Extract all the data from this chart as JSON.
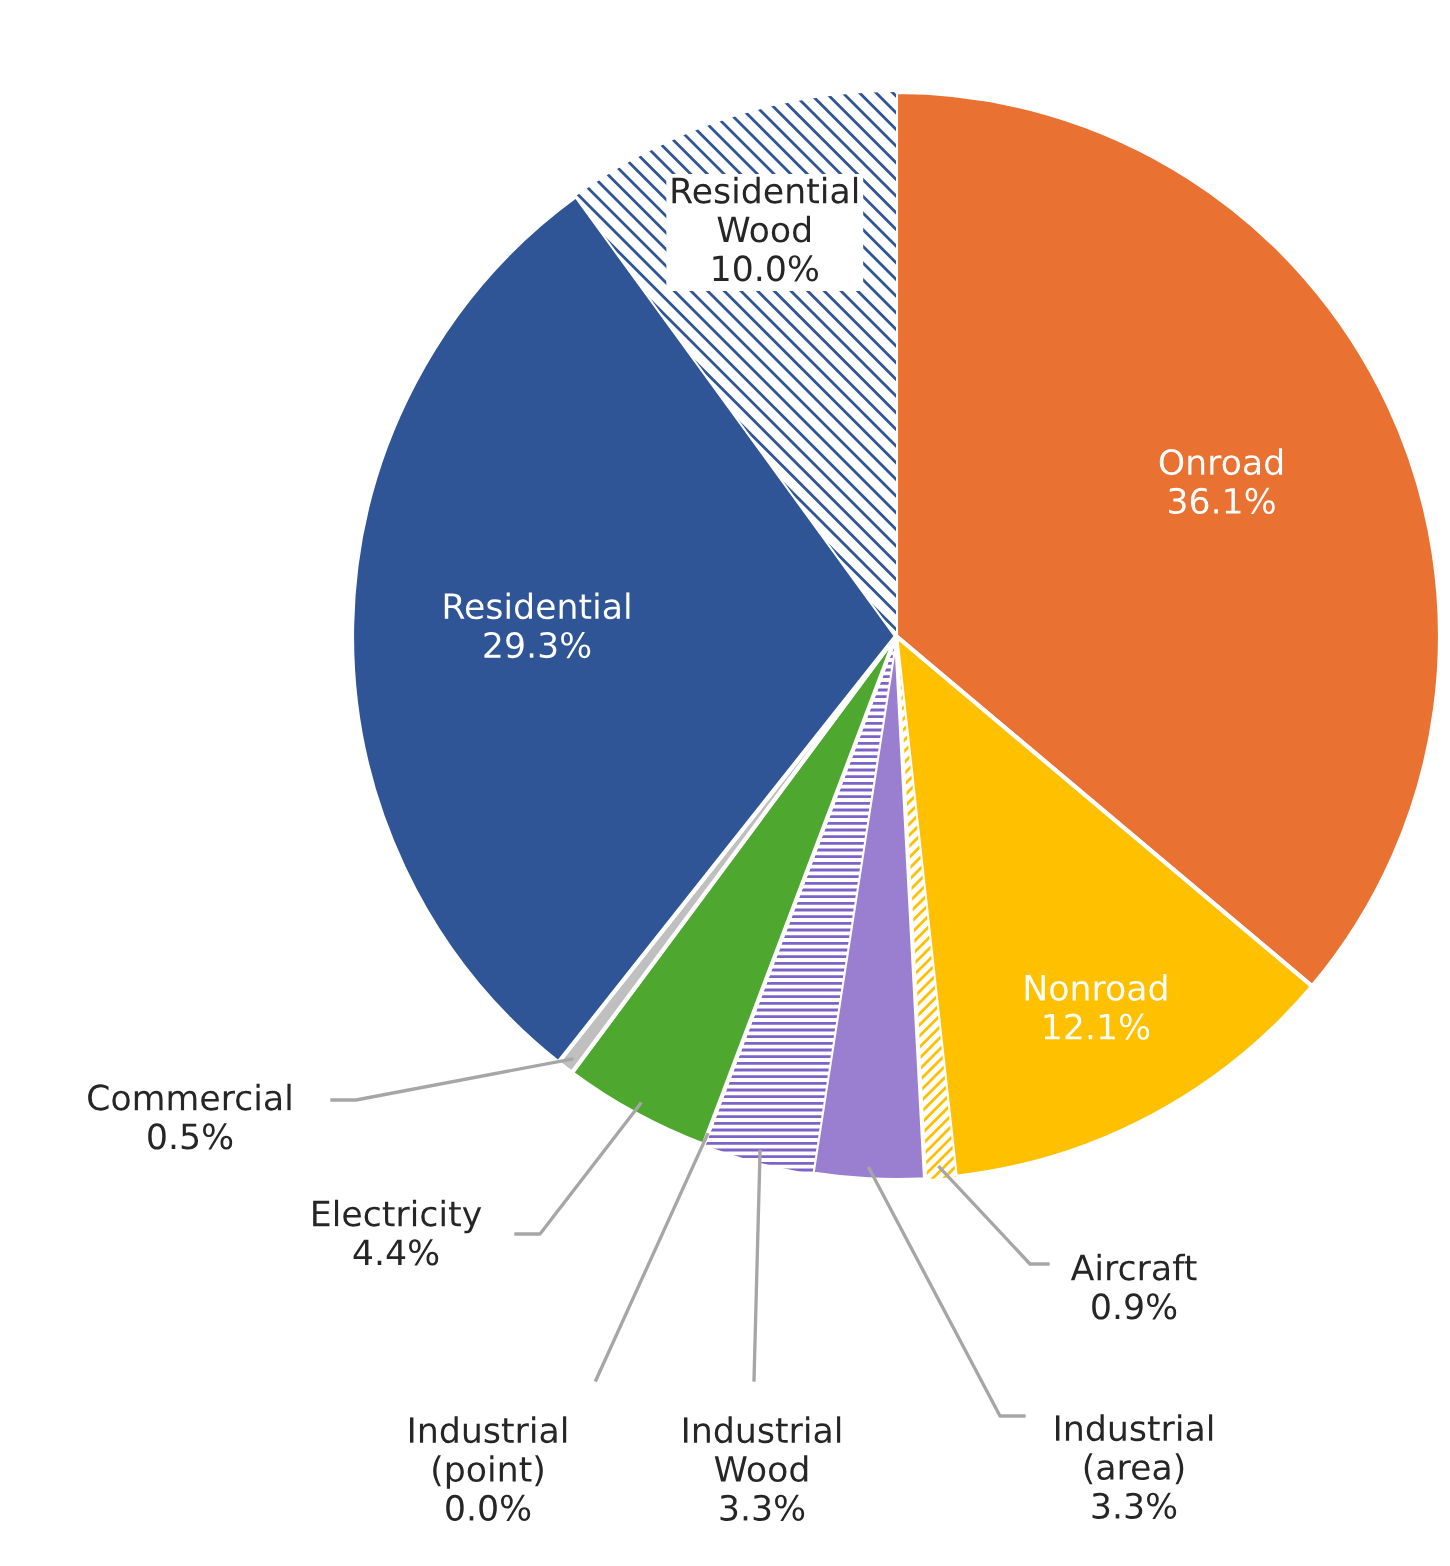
{
  "chart_data": {
    "type": "pie",
    "categories": [
      "Onroad",
      "Nonroad",
      "Aircraft",
      "Industrial (area)",
      "Industrial Wood",
      "Industrial (point)",
      "Electricity",
      "Commercial",
      "Residential",
      "Residential Wood"
    ],
    "values": [
      36.1,
      12.1,
      0.9,
      3.3,
      3.3,
      0.0,
      4.4,
      0.5,
      29.3,
      10.0
    ],
    "colors": [
      "#e97132",
      "#ffc000",
      "#ffc000",
      "#9a7fd0",
      "#7d62c8",
      "#4e8fd0",
      "#4ea72e",
      "#bfbfbf",
      "#2f5597",
      "#2f5597"
    ],
    "value_labels": [
      "36.1%",
      "12.1%",
      "0.9%",
      "3.3%",
      "3.3%",
      "0.0%",
      "4.4%",
      "0.5%",
      "29.3%",
      "10.0%"
    ],
    "legend": false
  }
}
